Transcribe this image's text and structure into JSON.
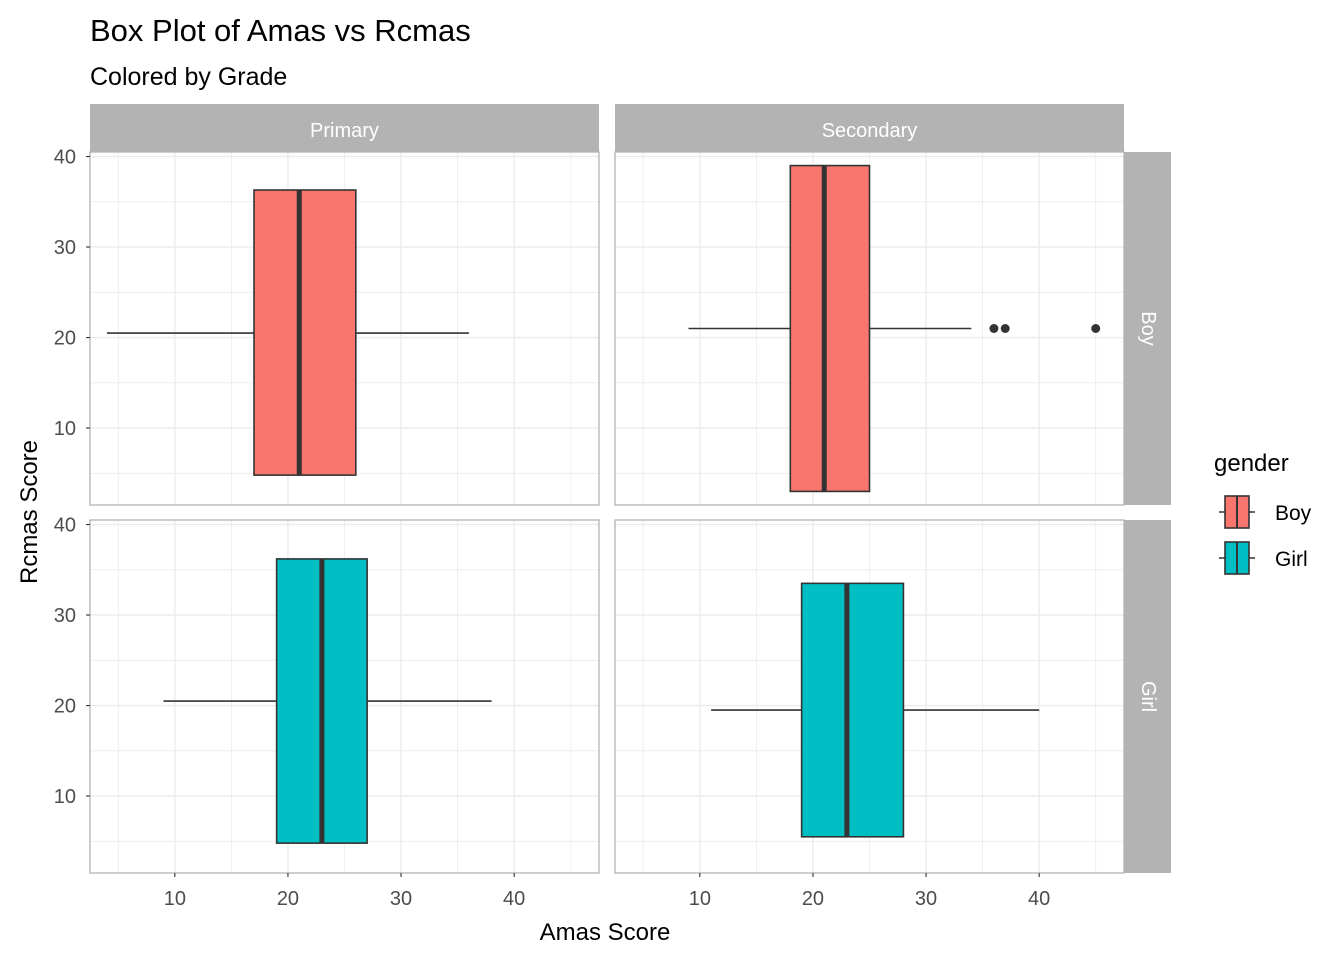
{
  "chart_data": {
    "type": "boxplot",
    "title": "Box Plot of Amas vs Rcmas",
    "subtitle": "Colored by Grade",
    "xlabel": "Amas Score",
    "ylabel": "Rcmas Score",
    "xlim": [
      2.5,
      47.5
    ],
    "ylim": [
      1.5,
      40.5
    ],
    "x_ticks": [
      10,
      20,
      30,
      40
    ],
    "y_ticks": [
      10,
      20,
      30,
      40
    ],
    "grid": true,
    "orientation": "horizontal",
    "facet_cols": [
      "Primary",
      "Secondary"
    ],
    "facet_rows": [
      "Boy",
      "Girl"
    ],
    "legend": {
      "title": "gender",
      "position": "right",
      "items": [
        {
          "label": "Boy",
          "color": "#F8766D"
        },
        {
          "label": "Girl",
          "color": "#00BFC4"
        }
      ]
    },
    "boxes": [
      {
        "grade": "Primary",
        "gender": "Boy",
        "color": "#F8766D",
        "min": 4,
        "q1": 17,
        "median": 21,
        "q3": 26,
        "max": 36,
        "y": 20.5,
        "y_low": 4.8,
        "y_high": 36.3,
        "outliers": []
      },
      {
        "grade": "Secondary",
        "gender": "Boy",
        "color": "#F8766D",
        "min": 9,
        "q1": 18,
        "median": 21,
        "q3": 25,
        "max": 34,
        "y": 21,
        "y_low": 3,
        "y_high": 39,
        "outliers": [
          36,
          37,
          45
        ]
      },
      {
        "grade": "Primary",
        "gender": "Girl",
        "color": "#00BFC4",
        "min": 9,
        "q1": 19,
        "median": 23,
        "q3": 27,
        "max": 38,
        "y": 20.5,
        "y_low": 4.8,
        "y_high": 36.2,
        "outliers": []
      },
      {
        "grade": "Secondary",
        "gender": "Girl",
        "color": "#00BFC4",
        "min": 11,
        "q1": 19,
        "median": 23,
        "q3": 28,
        "max": 40,
        "y": 19.5,
        "y_low": 5.5,
        "y_high": 33.5,
        "outliers": []
      }
    ]
  }
}
